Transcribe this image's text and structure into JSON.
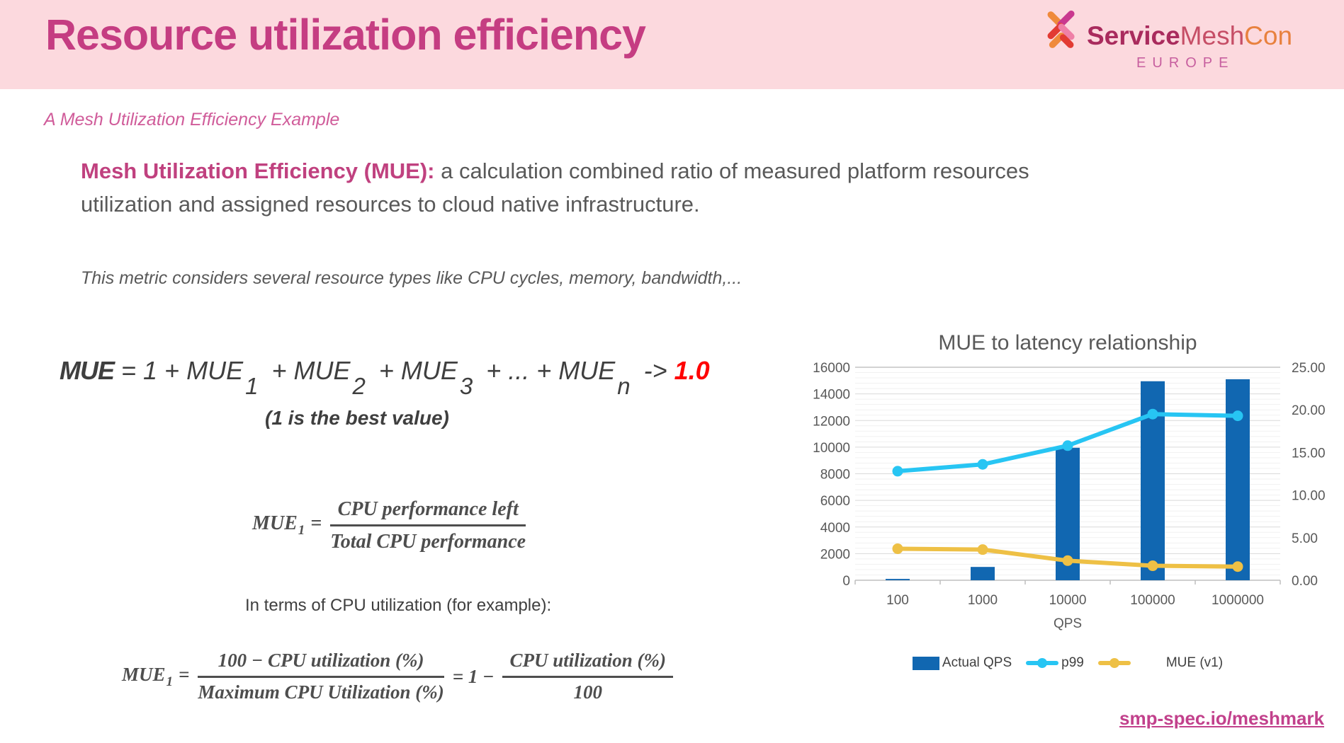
{
  "header": {
    "title": "Resource utilization efficiency",
    "logo": {
      "service": "Service",
      "mesh": "Mesh",
      "con": "Con",
      "region": "EUROPE"
    }
  },
  "subtitle": "A Mesh Utilization Efficiency Example",
  "intro": {
    "bold": "Mesh Utilization Efficiency (MUE):",
    "rest": " a calculation combined ratio of measured platform resources",
    "line2": "utilization and assigned resources to cloud native infrastructure."
  },
  "note": "This metric considers several resource types like CPU cycles, memory, bandwidth,...",
  "formulas": {
    "sum": {
      "lead": "MUE",
      "eq": " = 1 + MUE",
      "s1": "1",
      "p2": " + MUE",
      "s2": "2",
      "p3": " + MUE",
      "s3": "3",
      "p4": " + ... + MUE",
      "sn": "n",
      "arrow": " -> ",
      "target": "1.0"
    },
    "best": "(1 is the best value)",
    "def": {
      "lhs": "MUE",
      "sub": "1",
      "eq": "=",
      "num": "CPU performance left",
      "den": "Total CPU performance"
    },
    "cpu_terms": "In terms of CPU utilization (for example):",
    "cpu": {
      "lhs": "MUE",
      "sub": "1",
      "eq": "=",
      "num1": "100 − CPU utilization (%)",
      "den1": "Maximum CPU Utilization (%)",
      "mid": "= 1 −",
      "num2": "CPU utilization (%)",
      "den2": "100"
    }
  },
  "chart_data": {
    "type": "bar+line",
    "title": "MUE to latency relationship",
    "categories": [
      "100",
      "1000",
      "10000",
      "100000",
      "1000000"
    ],
    "xlabel": "QPS",
    "left_axis": {
      "max": 16000,
      "labels": [
        "0",
        "2000",
        "4000",
        "6000",
        "8000",
        "10000",
        "12000",
        "14000",
        "16000"
      ]
    },
    "right_axis": {
      "max": 25,
      "labels": [
        "0.00",
        "5.00",
        "10.00",
        "15.00",
        "20.00",
        "25.00"
      ]
    },
    "series": [
      {
        "name": "Actual QPS",
        "type": "bar",
        "axis": "left",
        "color": "#1167b1",
        "values": [
          100,
          1000,
          9950,
          14950,
          15100
        ]
      },
      {
        "name": "p99",
        "type": "line",
        "axis": "right",
        "color": "#27c5f3",
        "values": [
          12.8,
          13.6,
          15.8,
          19.5,
          19.3
        ]
      },
      {
        "name": "MUE (v1)",
        "type": "line",
        "axis": "right",
        "color": "#eec045",
        "values": [
          3.7,
          3.6,
          2.3,
          1.7,
          1.6
        ]
      }
    ],
    "legend": [
      "Actual QPS",
      "p99",
      "MUE (v1)"
    ],
    "legend_position": "bottom",
    "grid": true
  },
  "footer": {
    "link": "smp-spec.io/meshmark"
  }
}
